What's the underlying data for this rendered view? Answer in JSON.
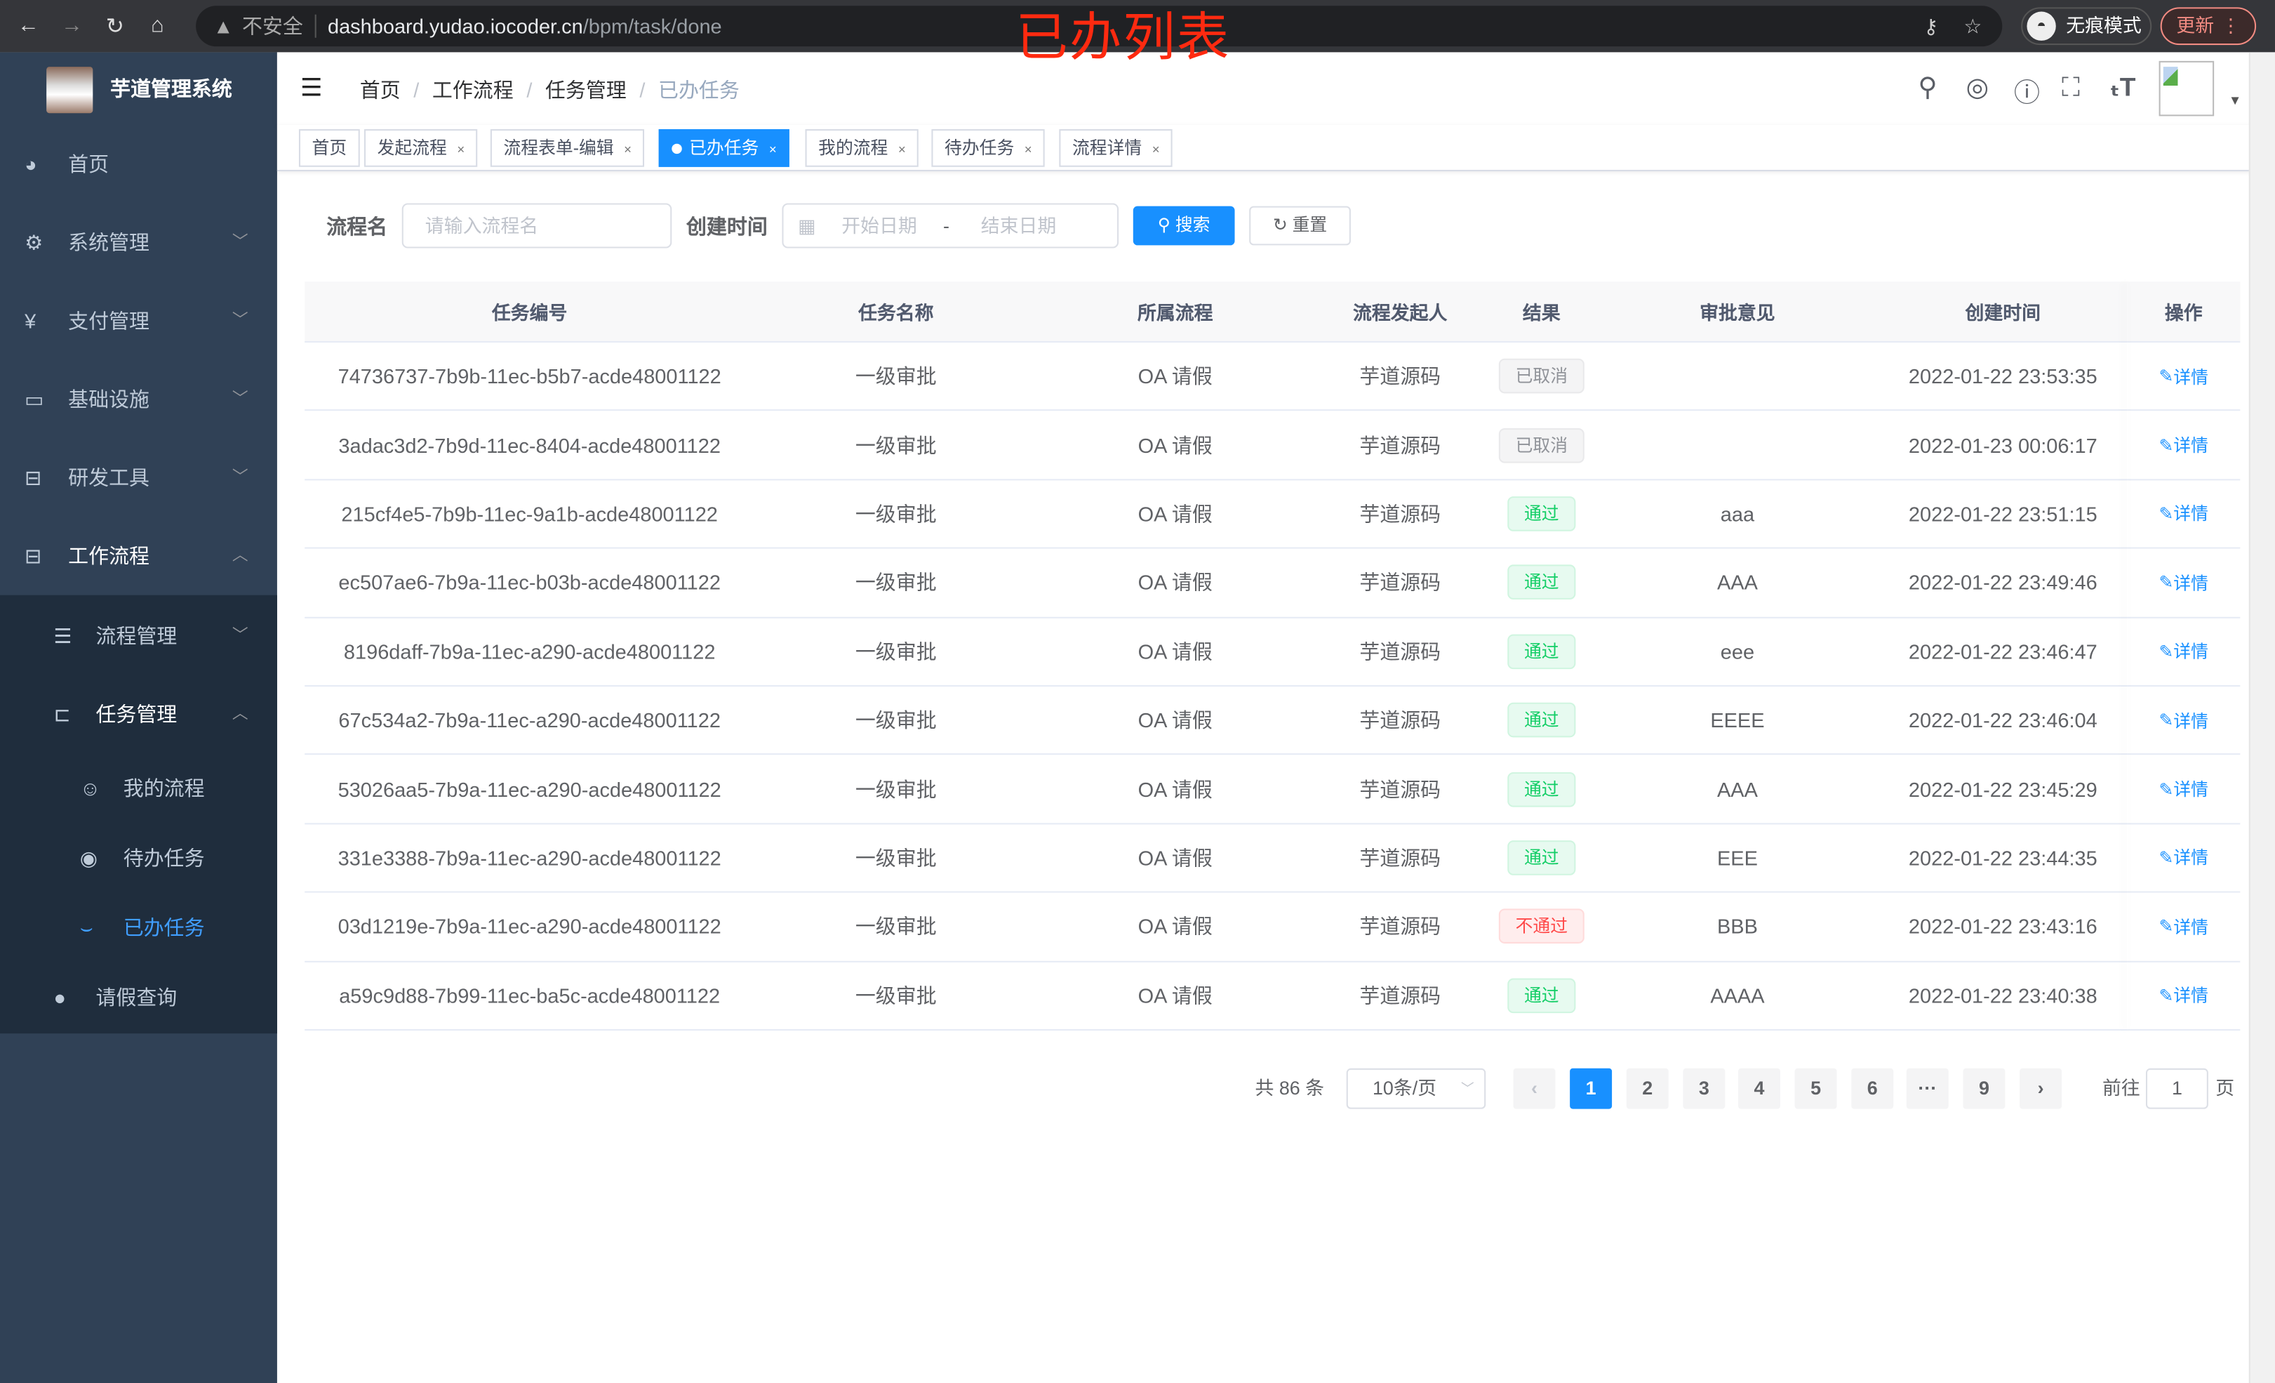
{
  "browser": {
    "insecure": "不安全",
    "url_host": "dashboard.yudao.iocoder.cn",
    "url_path": "/bpm/task/done",
    "incognito": "无痕模式",
    "update": "更新"
  },
  "annotation": "已办列表",
  "sidebar": {
    "title": "芋道管理系统",
    "items": [
      {
        "label": "首页",
        "icon": "dashboard-icon"
      },
      {
        "label": "系统管理",
        "icon": "gear-icon"
      },
      {
        "label": "支付管理",
        "icon": "yen-icon"
      },
      {
        "label": "基础设施",
        "icon": "monitor-icon"
      },
      {
        "label": "研发工具",
        "icon": "toolbox-icon"
      },
      {
        "label": "工作流程",
        "icon": "toolbox-icon"
      }
    ],
    "sub": [
      {
        "label": "流程管理"
      },
      {
        "label": "任务管理"
      }
    ],
    "subsub": [
      {
        "label": "我的流程"
      },
      {
        "label": "待办任务"
      },
      {
        "label": "已办任务",
        "active": true
      }
    ],
    "leave": {
      "label": "请假查询"
    }
  },
  "breadcrumb": [
    "首页",
    "工作流程",
    "任务管理",
    "已办任务"
  ],
  "tags": [
    "首页",
    "发起流程",
    "流程表单-编辑",
    "已办任务",
    "我的流程",
    "待办任务",
    "流程详情"
  ],
  "filters": {
    "name_label": "流程名",
    "name_placeholder": "请输入流程名",
    "time_label": "创建时间",
    "start_placeholder": "开始日期",
    "sep": "-",
    "end_placeholder": "结束日期",
    "search": "搜索",
    "reset": "重置"
  },
  "table": {
    "headers": [
      "任务编号",
      "任务名称",
      "所属流程",
      "流程发起人",
      "结果",
      "审批意见",
      "创建时间",
      "操作"
    ],
    "rows": [
      [
        "74736737-7b9b-11ec-b5b7-acde48001122",
        "一级审批",
        "OA 请假",
        "芋道源码",
        "已取消",
        "",
        "2022-01-22 23:53:35",
        "详情"
      ],
      [
        "3adac3d2-7b9d-11ec-8404-acde48001122",
        "一级审批",
        "OA 请假",
        "芋道源码",
        "已取消",
        "",
        "2022-01-23 00:06:17",
        "详情"
      ],
      [
        "215cf4e5-7b9b-11ec-9a1b-acde48001122",
        "一级审批",
        "OA 请假",
        "芋道源码",
        "通过",
        "aaa",
        "2022-01-22 23:51:15",
        "详情"
      ],
      [
        "ec507ae6-7b9a-11ec-b03b-acde48001122",
        "一级审批",
        "OA 请假",
        "芋道源码",
        "通过",
        "AAA",
        "2022-01-22 23:49:46",
        "详情"
      ],
      [
        "8196daff-7b9a-11ec-a290-acde48001122",
        "一级审批",
        "OA 请假",
        "芋道源码",
        "通过",
        "eee",
        "2022-01-22 23:46:47",
        "详情"
      ],
      [
        "67c534a2-7b9a-11ec-a290-acde48001122",
        "一级审批",
        "OA 请假",
        "芋道源码",
        "通过",
        "EEEE",
        "2022-01-22 23:46:04",
        "详情"
      ],
      [
        "53026aa5-7b9a-11ec-a290-acde48001122",
        "一级审批",
        "OA 请假",
        "芋道源码",
        "通过",
        "AAA",
        "2022-01-22 23:45:29",
        "详情"
      ],
      [
        "331e3388-7b9a-11ec-a290-acde48001122",
        "一级审批",
        "OA 请假",
        "芋道源码",
        "通过",
        "EEE",
        "2022-01-22 23:44:35",
        "详情"
      ],
      [
        "03d1219e-7b9a-11ec-a290-acde48001122",
        "一级审批",
        "OA 请假",
        "芋道源码",
        "不通过",
        "BBB",
        "2022-01-22 23:43:16",
        "详情"
      ],
      [
        "a59c9d88-7b99-11ec-ba5c-acde48001122",
        "一级审批",
        "OA 请假",
        "芋道源码",
        "通过",
        "AAAA",
        "2022-01-22 23:40:38",
        "详情"
      ]
    ]
  },
  "pagination": {
    "total": "共 86 条",
    "page_size": "10条/页",
    "pages": [
      "1",
      "2",
      "3",
      "4",
      "5",
      "6",
      "···",
      "9"
    ],
    "current": "1",
    "goto_label": "前往",
    "goto_value": "1",
    "page_unit": "页"
  },
  "colors": {
    "primary": "#1890ff",
    "sidebar": "#304156",
    "annotation": "#ff2a10"
  }
}
